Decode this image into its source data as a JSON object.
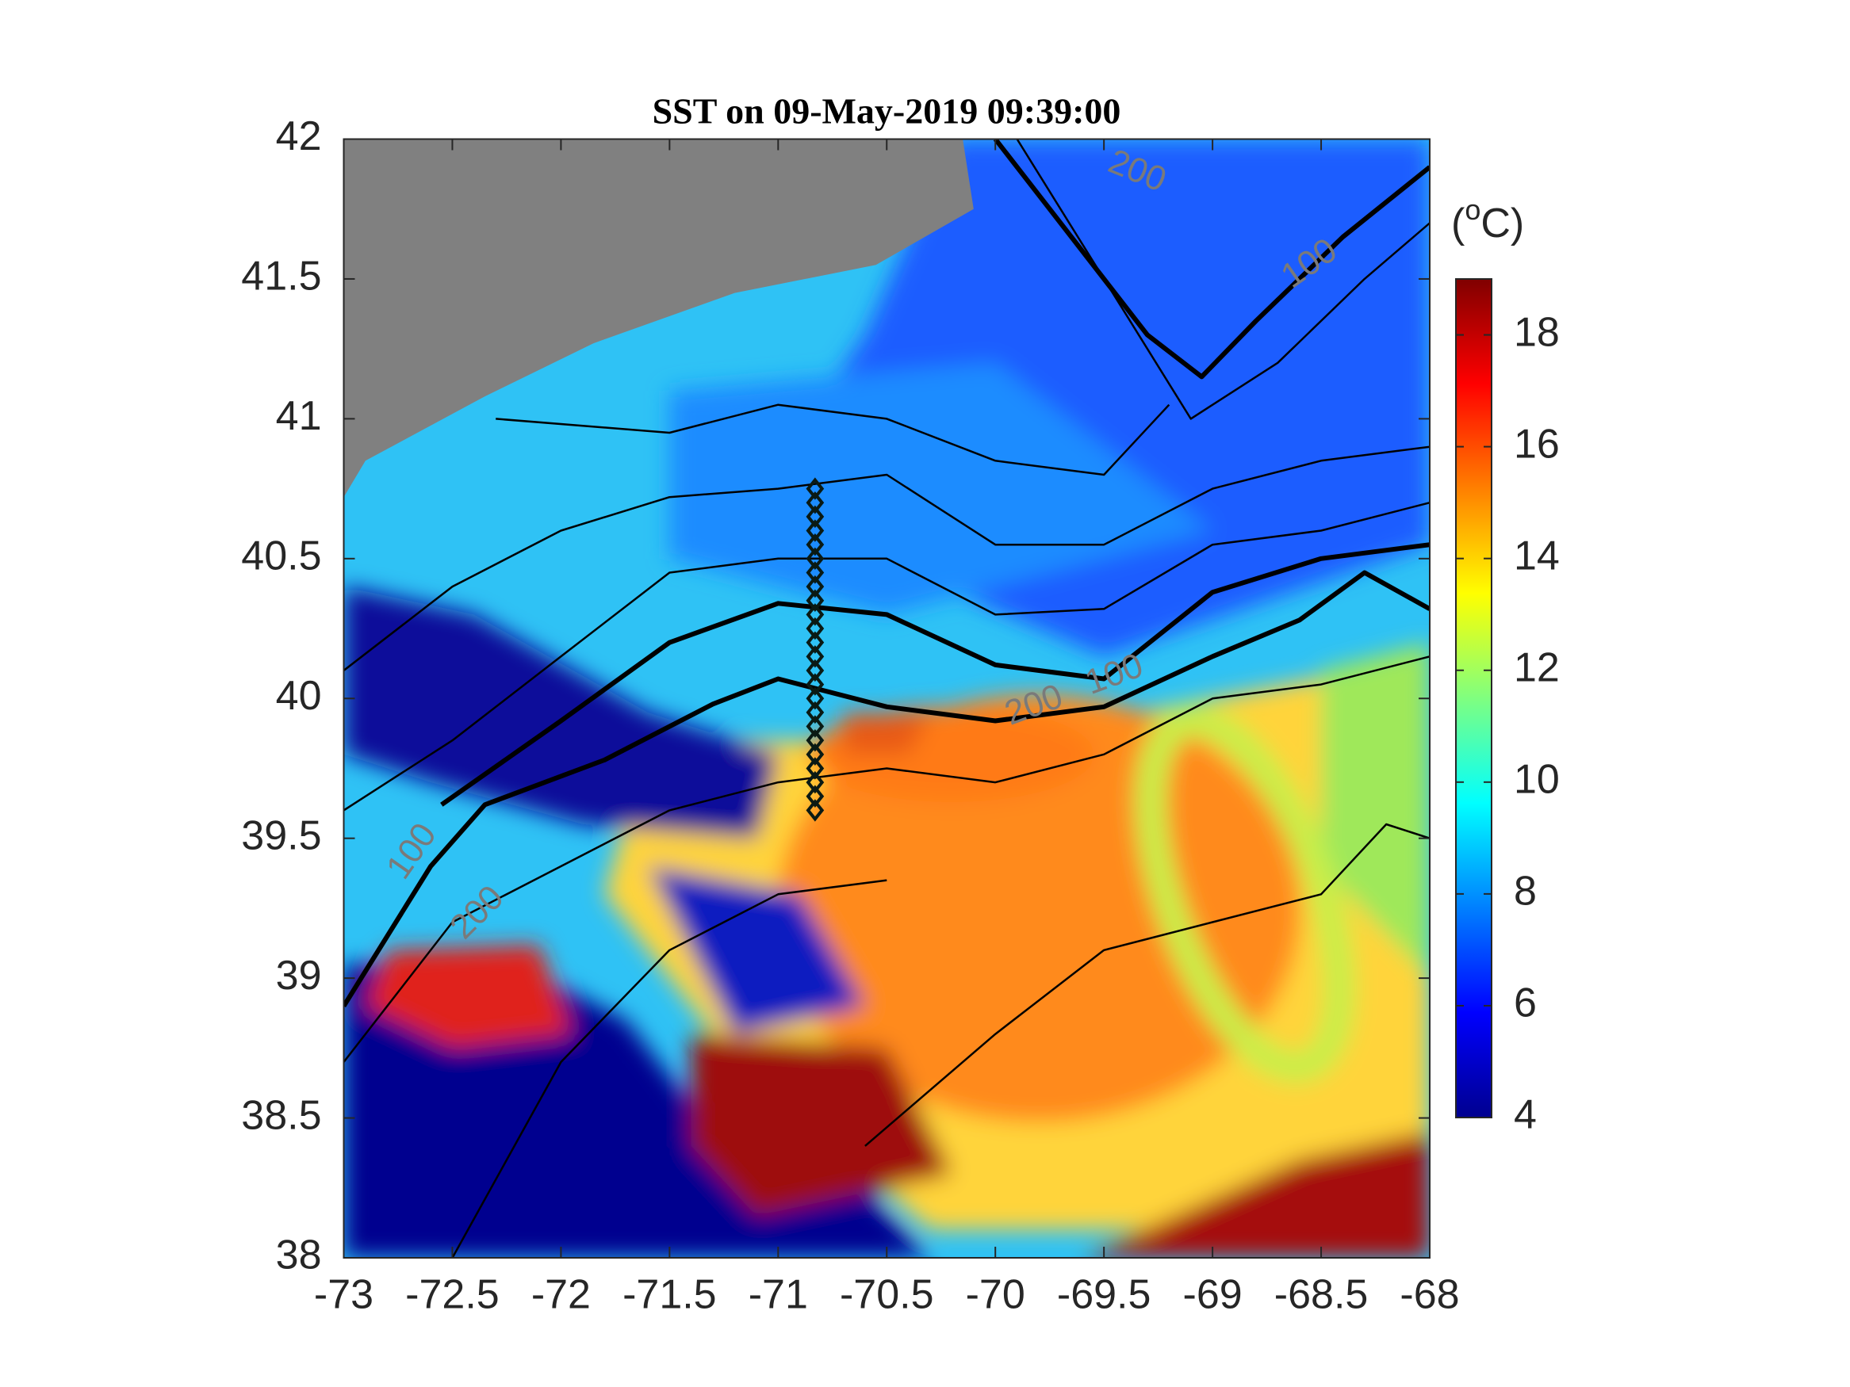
{
  "chart_data": {
    "type": "map",
    "title": "SST on 09-May-2019 09:39:00",
    "xlim": [
      -73,
      -68
    ],
    "xticks": [
      -73,
      -72.5,
      -72,
      -71.5,
      -71,
      -70.5,
      -70,
      -69.5,
      -69,
      -68.5,
      -68
    ],
    "ylim": [
      38,
      42
    ],
    "yticks": [
      38,
      38.5,
      39,
      39.5,
      40,
      40.5,
      41,
      41.5,
      42
    ],
    "colorbar": {
      "colormap": "jet",
      "clim": [
        4,
        19
      ],
      "ticks": [
        4,
        6,
        8,
        10,
        12,
        14,
        16,
        18
      ],
      "label": [
        "(",
        "o",
        "C)"
      ]
    },
    "contour_labels": [
      {
        "text": "200",
        "x": -69.35,
        "y": 41.88
      },
      {
        "text": "100",
        "x": -68.55,
        "y": 41.55
      },
      {
        "text": "100",
        "x": -72.68,
        "y": 39.45
      },
      {
        "text": "200",
        "x": -72.38,
        "y": 39.23
      },
      {
        "text": "200",
        "x": -69.82,
        "y": 39.97
      },
      {
        "text": "100",
        "x": -69.45,
        "y": 40.08
      }
    ],
    "stations": {
      "x": [
        -70.83,
        -70.83,
        -70.83,
        -70.83,
        -70.83,
        -70.83,
        -70.83,
        -70.83,
        -70.83,
        -70.83,
        -70.83,
        -70.83,
        -70.83,
        -70.83,
        -70.83,
        -70.83,
        -70.83,
        -70.83,
        -70.83,
        -70.83,
        -70.83,
        -70.83,
        -70.83,
        -70.83
      ],
      "y": [
        39.6,
        39.65,
        39.7,
        39.75,
        39.8,
        39.85,
        39.9,
        39.95,
        40.0,
        40.05,
        40.1,
        40.15,
        40.2,
        40.25,
        40.3,
        40.35,
        40.4,
        40.45,
        40.5,
        40.55,
        40.6,
        40.65,
        40.7,
        40.75
      ]
    }
  }
}
